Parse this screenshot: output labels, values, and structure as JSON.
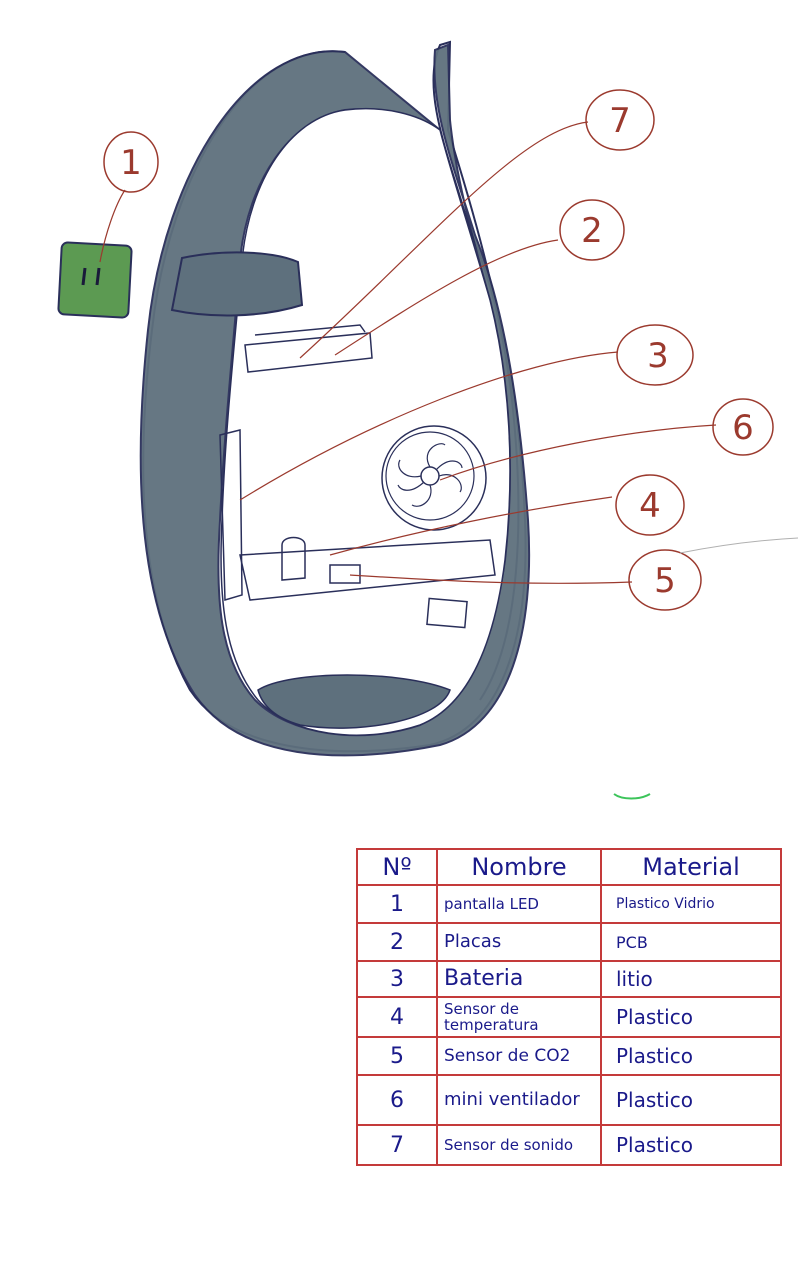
{
  "callouts": [
    "1",
    "2",
    "3",
    "4",
    "5",
    "6",
    "7"
  ],
  "table": {
    "headers": [
      "Nº",
      "Nombre",
      "Material"
    ],
    "rows": [
      {
        "num": "1",
        "name": "pantalla LED",
        "material": "Plastico Vidrio"
      },
      {
        "num": "2",
        "name": "Placas",
        "material": "PCB"
      },
      {
        "num": "3",
        "name": "Bateria",
        "material": "litio"
      },
      {
        "num": "4",
        "name": "Sensor de temperatura",
        "material": "Plastico"
      },
      {
        "num": "5",
        "name": "Sensor de CO2",
        "material": "Plastico"
      },
      {
        "num": "6",
        "name": "mini ventilador",
        "material": "Plastico"
      },
      {
        "num": "7",
        "name": "Sensor de sonido",
        "material": "Plastico"
      }
    ]
  },
  "colors": {
    "body": "#5e707d",
    "outline": "#2a2f5a",
    "screen": "#5c9a52",
    "callout": "#9b3a2e",
    "ink": "#1a1a8a",
    "grid": "#c43a3a"
  }
}
